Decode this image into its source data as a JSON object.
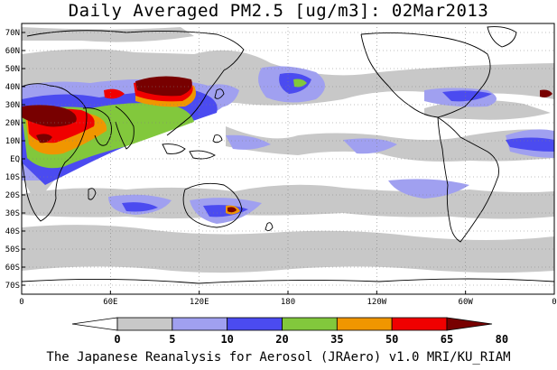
{
  "title": "Daily Averaged PM2.5 [ug/m3]: 02Mar2013",
  "footer": "The Japanese Reanalysis for Aerosol (JRAero) v1.0 MRI/KU_RIAM",
  "map": {
    "lon_range": [
      0,
      360
    ],
    "lat_range": [
      -75,
      75
    ],
    "lat_ticks": [
      "70N",
      "60N",
      "50N",
      "40N",
      "30N",
      "20N",
      "10N",
      "EQ",
      "10S",
      "20S",
      "30S",
      "40S",
      "50S",
      "60S",
      "70S"
    ],
    "lat_tick_values": [
      70,
      60,
      50,
      40,
      30,
      20,
      10,
      0,
      -10,
      -20,
      -30,
      -40,
      -50,
      -60,
      -70
    ],
    "lon_ticks": [
      "0",
      "60E",
      "120E",
      "180",
      "120W",
      "60W",
      "0"
    ],
    "lon_tick_values": [
      0,
      60,
      120,
      180,
      240,
      300,
      360
    ],
    "grid": "dotted"
  },
  "colorbar": {
    "levels": [
      "0",
      "5",
      "10",
      "20",
      "35",
      "50",
      "65",
      "80"
    ],
    "colors": [
      "#ffffff",
      "#c8c8c8",
      "#a0a0f0",
      "#4b4bf0",
      "#82c83c",
      "#f09600",
      "#f00000",
      "#780000"
    ]
  }
}
